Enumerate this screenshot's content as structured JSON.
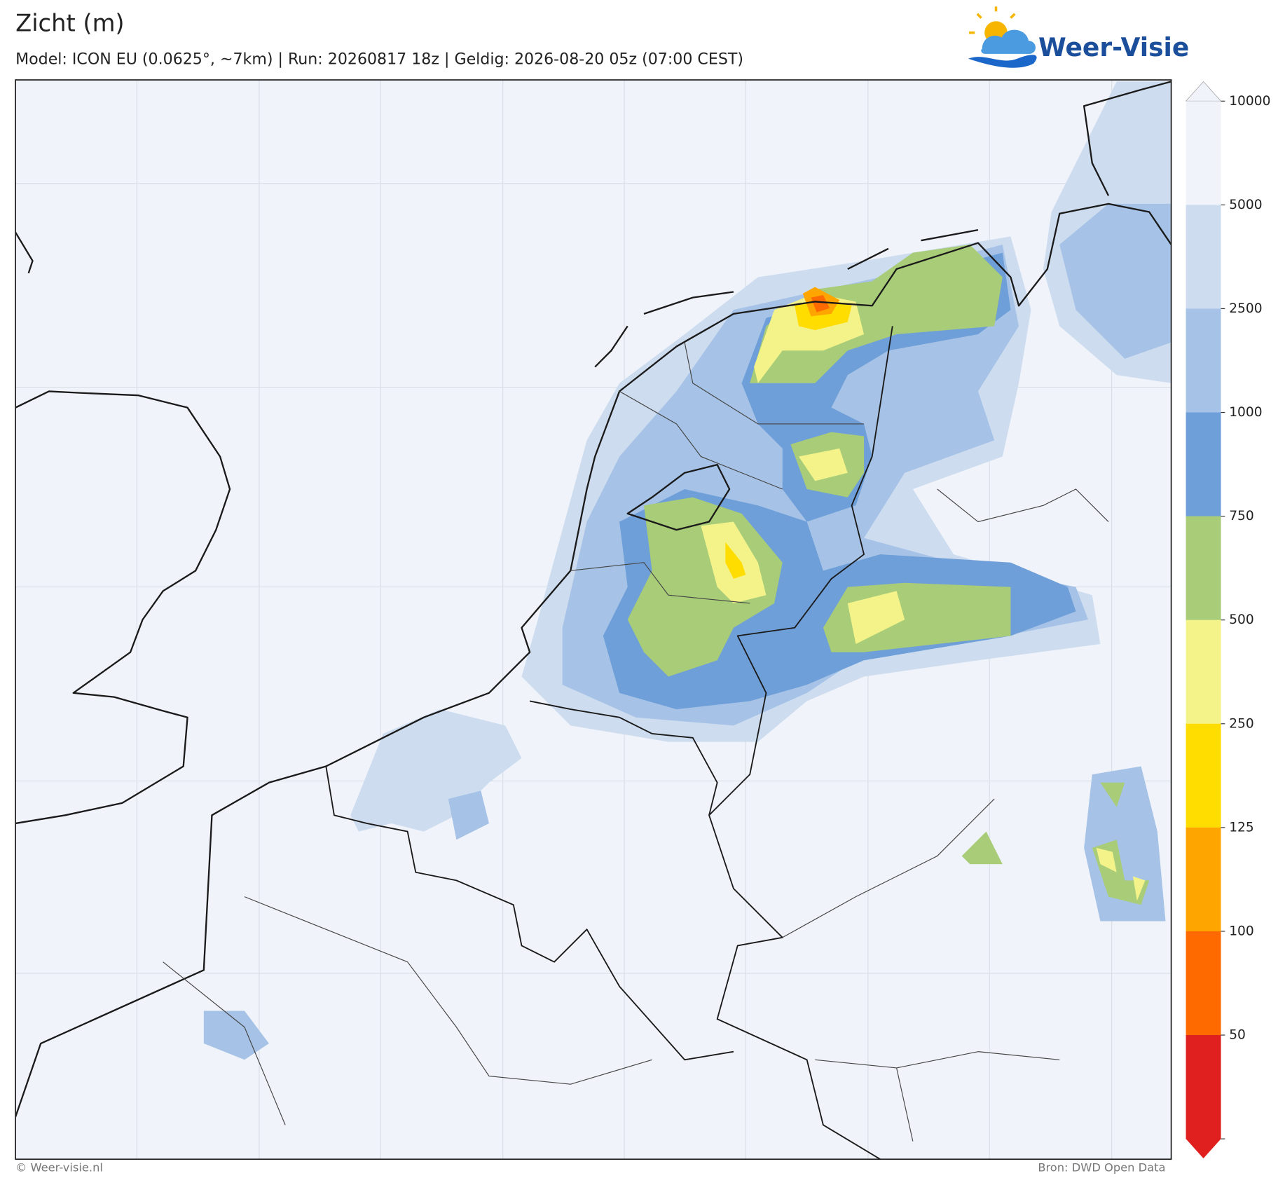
{
  "header": {
    "title": "Zicht (m)",
    "subtitle": "Model: ICON EU (0.0625°, ~7km)  |  Run: 20260817 18z  |  Geldig: 2026-08-20 05z (07:00 CEST)",
    "logo": "Weer-Visie"
  },
  "colorbar": {
    "levels": [
      10000,
      5000,
      2500,
      1000,
      750,
      500,
      250,
      125,
      100,
      50
    ],
    "colors": [
      "#f0f4fa",
      "#cddcef",
      "#a6c3e7",
      "#6f9fd8",
      "#a8cc78",
      "#f3f38a",
      "#ffdd00",
      "#ffa500",
      "#ff6a00",
      "#e0201e"
    ]
  },
  "footer": {
    "left": "© Weer-visie.nl",
    "right": "Bron: DWD Open Data"
  }
}
